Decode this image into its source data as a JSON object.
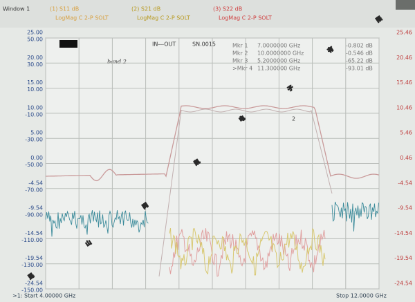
{
  "header": {
    "window": "Window 1",
    "traces": [
      {
        "name": "(1) S11 dB",
        "format": "LogMag C 2-P SOLT"
      },
      {
        "name": "(2) S21 dB",
        "format": "LogMag C 2-P SOLT"
      },
      {
        "name": "(3) S22 dB",
        "format": "LogMag C 2-P SOLT"
      }
    ]
  },
  "scale": {
    "left": [
      [
        "25.00",
        "50.00"
      ],
      [
        "20.00",
        "30.00"
      ],
      [
        "15.00",
        "10.00"
      ],
      [
        "10.00",
        "-10.00"
      ],
      [
        "5.00",
        "-30.00"
      ],
      [
        "0.00",
        "-50.00"
      ],
      [
        "-4.54",
        "-70.00"
      ],
      [
        "-9.54",
        "-90.00"
      ],
      [
        "-14.54",
        "-110.00"
      ],
      [
        "-19.54",
        "-130.00"
      ],
      [
        "-24.54",
        "-150.00"
      ]
    ],
    "right": [
      "25.46",
      "20.46",
      "15.46",
      "10.46",
      "5.46",
      "0.46",
      "-4.54",
      "-9.54",
      "-14.54",
      "-19.54",
      "-24.54"
    ]
  },
  "plot": {
    "label": "IN---OUT",
    "serial": "SN.0015",
    "note": "band 2",
    "trace_marker": "2"
  },
  "markers": [
    {
      "name": "Mkr 1",
      "freq": "7.0000000 GHz",
      "value": "-0.802 dB"
    },
    {
      "name": "Mkr 2",
      "freq": "10.0000000 GHz",
      "value": "-0.546 dB"
    },
    {
      "name": "Mkr 3",
      "freq": "5.2000000 GHz",
      "value": "-65.22 dB"
    },
    {
      "name": ">Mkr 4",
      "freq": "11.300000 GHz",
      "value": "-93.01 dB"
    }
  ],
  "footer": {
    "start": ">1: Start 4.00000 GHz",
    "stop": "Stop 12.0000 GHz"
  },
  "watermark": [
    "昆",
    "山",
    "同",
    "凯",
    "电",
    "子",
    "有",
    "限"
  ]
}
